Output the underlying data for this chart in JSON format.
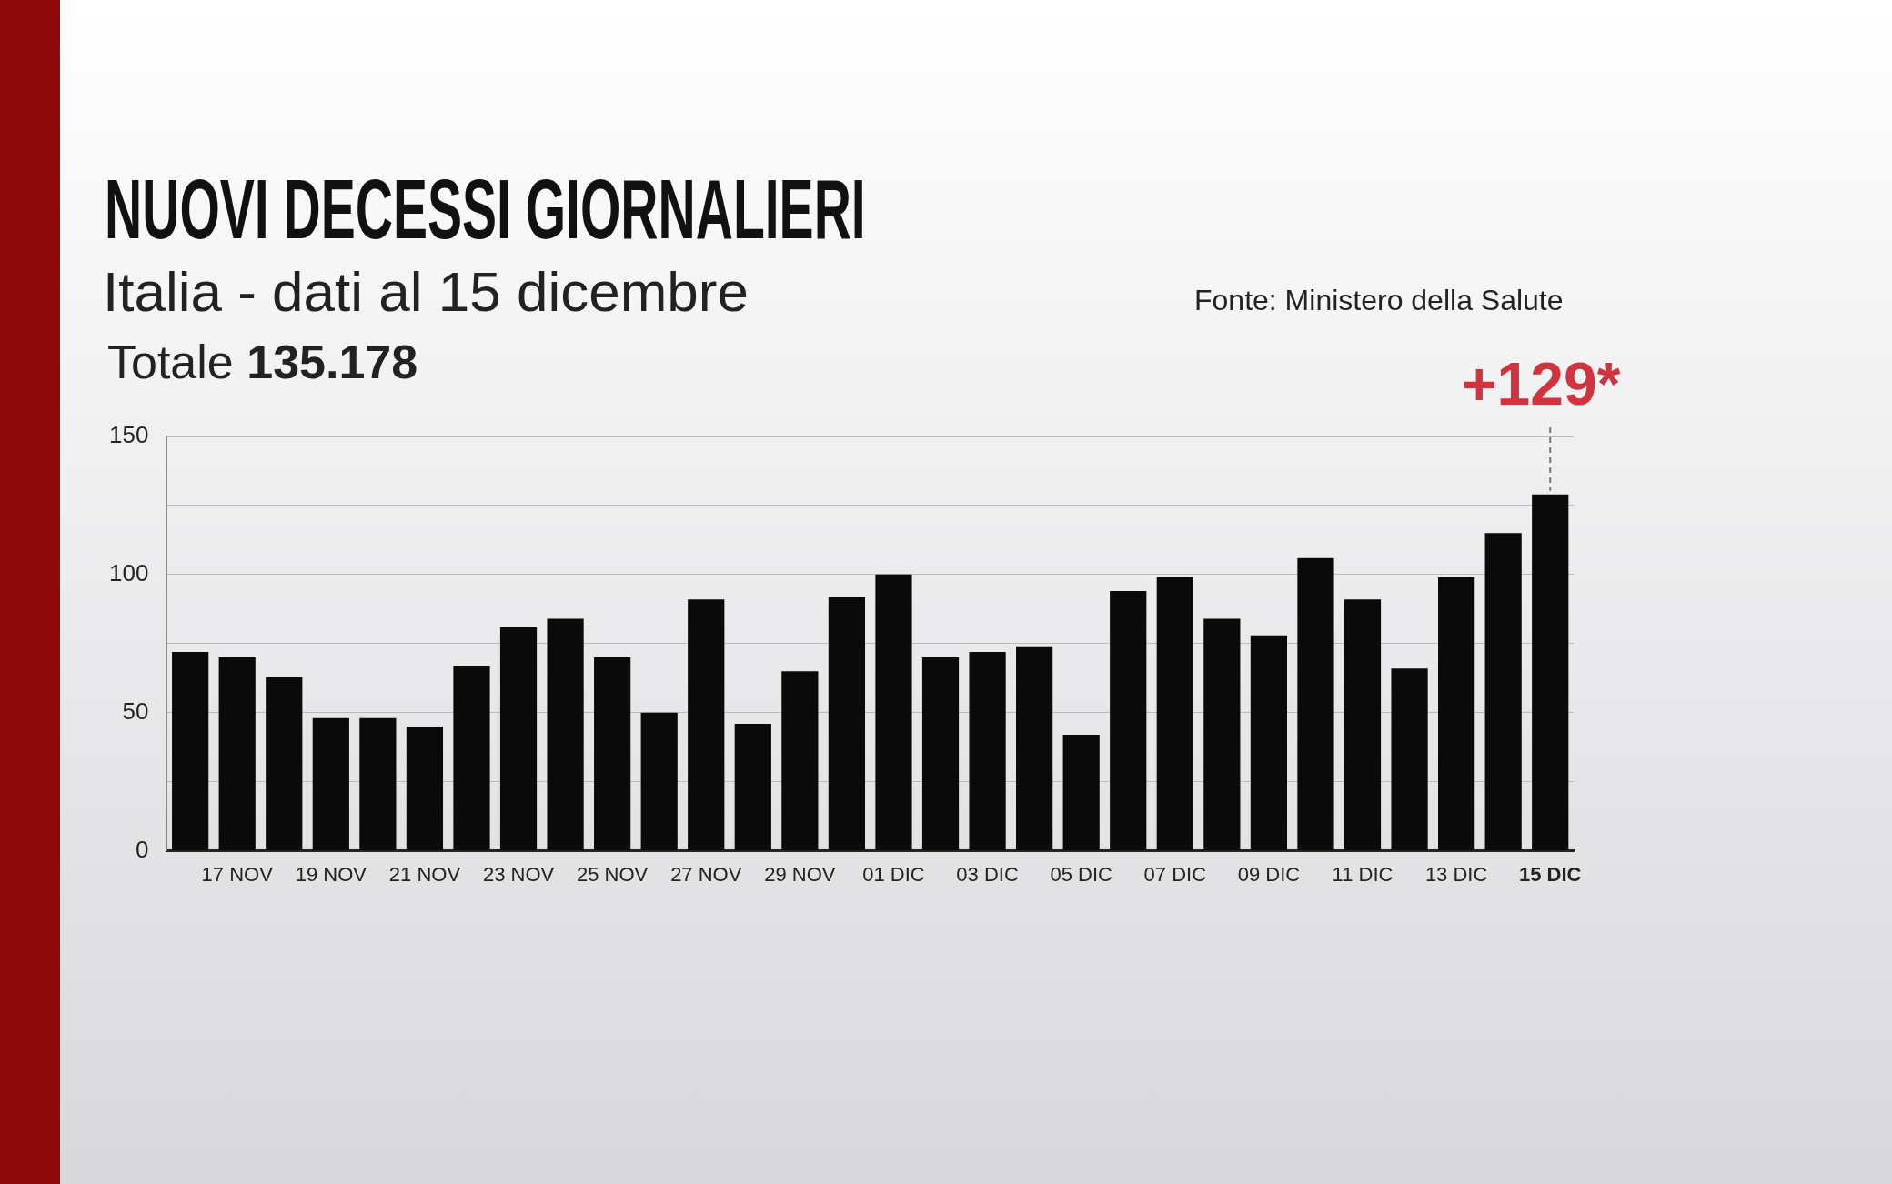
{
  "chart_data": {
    "type": "bar",
    "title": "NUOVI DECESSI GIORNALIERI",
    "subtitle": "Italia - dati al 15 dicembre",
    "categories": [
      null,
      "17 NOV",
      null,
      "19 NOV",
      null,
      "21 NOV",
      null,
      "23 NOV",
      null,
      "25 NOV",
      null,
      "27 NOV",
      null,
      "29 NOV",
      null,
      "01 DIC",
      null,
      "03 DIC",
      null,
      "05 DIC",
      null,
      "07 DIC",
      null,
      "09 DIC",
      null,
      "11 DIC",
      null,
      "13 DIC",
      null,
      "15 DIC"
    ],
    "values": [
      72,
      70,
      63,
      48,
      48,
      45,
      67,
      81,
      84,
      70,
      50,
      91,
      46,
      65,
      92,
      100,
      70,
      72,
      74,
      42,
      94,
      99,
      84,
      78,
      106,
      91,
      66,
      99,
      115,
      129
    ],
    "color": "#0a0a0a",
    "ylim": [
      0,
      150
    ],
    "yticks": [
      0,
      {
        "value": 25,
        "label": null
      },
      50,
      {
        "value": 75,
        "label": null
      },
      100,
      {
        "value": 125,
        "label": null
      },
      150
    ],
    "grid": "y",
    "annotations": [
      "Totale 135.178",
      "Fonte: Ministero della Salute",
      {
        "text": "+129*",
        "x": "15 DIC",
        "y": 129
      }
    ]
  }
}
